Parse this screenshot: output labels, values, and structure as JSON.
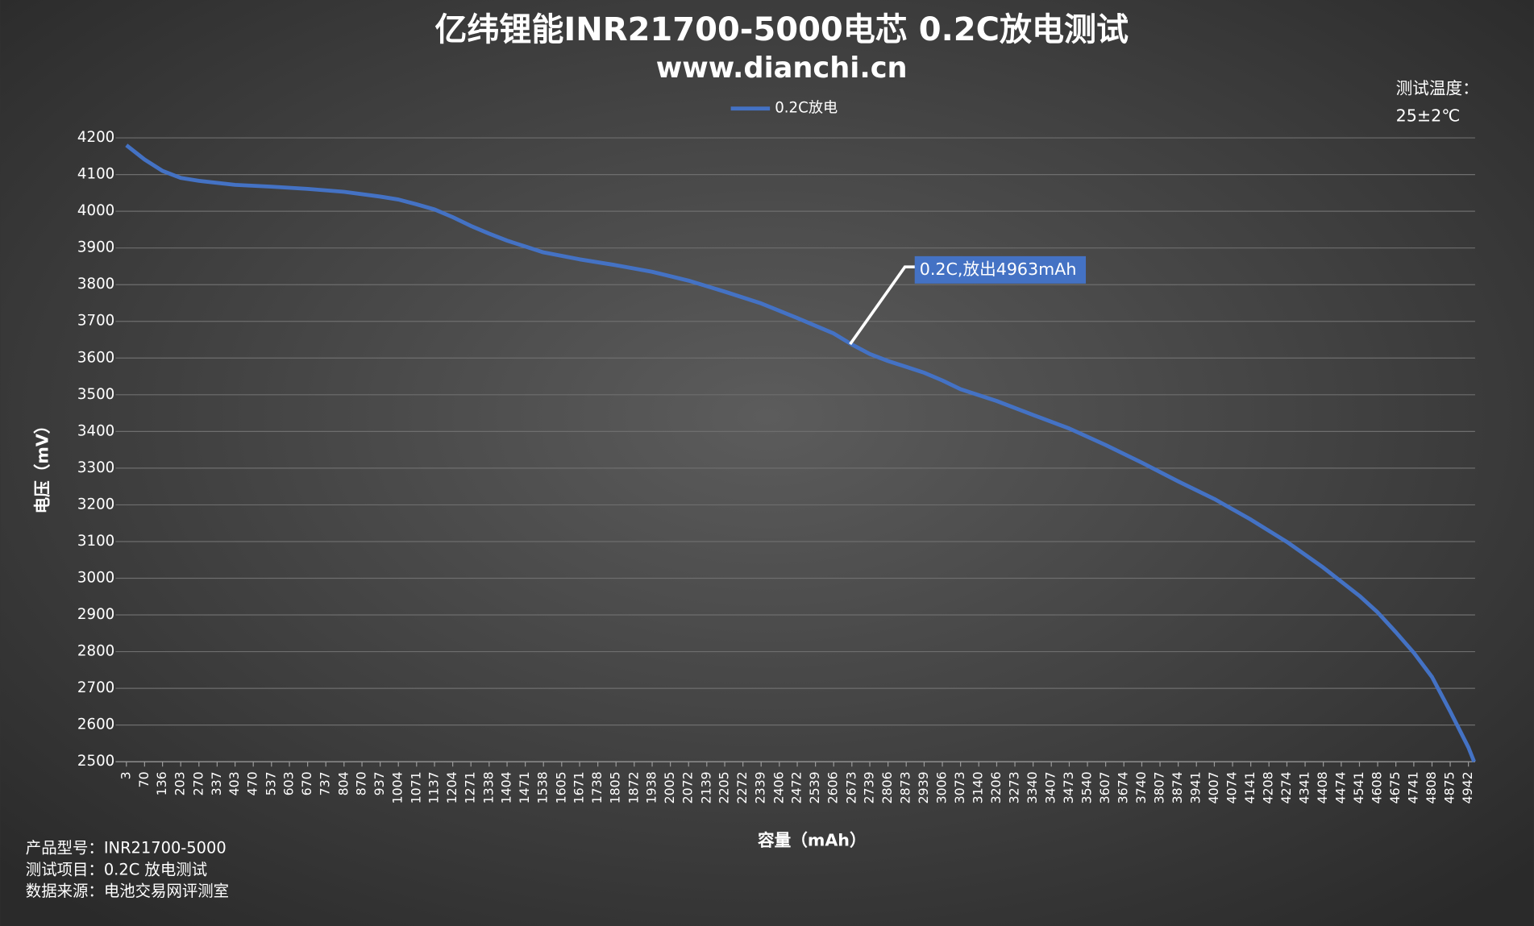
{
  "chart_data": {
    "type": "line",
    "title": "亿纬锂能INR21700-5000电芯 0.2C放电测试",
    "subtitle": "www.dianchi.cn",
    "y_label": "电压（mV）",
    "x_label": "容量（mAh）",
    "annotation": "0.2C,放出4963mAh",
    "note": [
      "测试温度：",
      "25±2℃"
    ],
    "footer": [
      "产品型号：INR21700-5000",
      "测试项目：0.2C 放电测试",
      "数据来源：电池交易网评测室"
    ],
    "legend": "top",
    "grid": true,
    "ylim": [
      2500,
      4200
    ],
    "yticks": [
      2500,
      2600,
      2700,
      2800,
      2900,
      3000,
      3100,
      3200,
      3300,
      3400,
      3500,
      3600,
      3700,
      3800,
      3900,
      4000,
      4100,
      4200
    ],
    "xlim": [
      3,
      4963
    ],
    "xticks": [
      3,
      70,
      136,
      203,
      270,
      337,
      403,
      470,
      537,
      603,
      670,
      737,
      804,
      870,
      937,
      1004,
      1071,
      1137,
      1204,
      1271,
      1338,
      1404,
      1471,
      1538,
      1605,
      1671,
      1738,
      1805,
      1872,
      1938,
      2005,
      2072,
      2139,
      2205,
      2272,
      2339,
      2406,
      2472,
      2539,
      2606,
      2673,
      2739,
      2806,
      2873,
      2939,
      3006,
      3073,
      3140,
      3206,
      3273,
      3340,
      3407,
      3473,
      3540,
      3607,
      3674,
      3740,
      3807,
      3874,
      3941,
      4007,
      4074,
      4141,
      4208,
      4274,
      4341,
      4408,
      4474,
      4541,
      4608,
      4675,
      4741,
      4808,
      4875,
      4942
    ],
    "x": [
      3,
      70,
      136,
      203,
      270,
      403,
      537,
      670,
      804,
      937,
      1004,
      1071,
      1137,
      1204,
      1271,
      1338,
      1404,
      1471,
      1538,
      1671,
      1805,
      1938,
      2072,
      2205,
      2339,
      2472,
      2606,
      2673,
      2739,
      2806,
      2873,
      2939,
      3006,
      3073,
      3206,
      3340,
      3473,
      3607,
      3740,
      3874,
      4007,
      4141,
      4274,
      4408,
      4541,
      4608,
      4675,
      4741,
      4808,
      4875,
      4942,
      4963
    ],
    "series": [
      {
        "name": "0.2C放电",
        "color": "#4472c4",
        "values": [
          4180,
          4141,
          4110,
          4091,
          4083,
          4072,
          4067,
          4061,
          4053,
          4040,
          4032,
          4019,
          4005,
          3984,
          3960,
          3939,
          3920,
          3904,
          3888,
          3869,
          3853,
          3835,
          3811,
          3781,
          3749,
          3709,
          3667,
          3637,
          3611,
          3592,
          3576,
          3560,
          3539,
          3515,
          3483,
          3445,
          3408,
          3363,
          3315,
          3264,
          3216,
          3160,
          3099,
          3029,
          2952,
          2907,
          2853,
          2797,
          2731,
          2637,
          2539,
          2500
        ]
      }
    ]
  }
}
